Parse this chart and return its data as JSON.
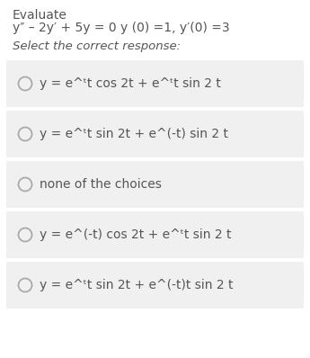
{
  "title_line1": "Evaluate",
  "title_line2": "y″ – 2y′ + 5y = 0 y (0) =1, y′(0) =3",
  "subtitle": "Select the correct response:",
  "options": [
    "y = e^ᵗt cos 2t + e^ᵗt sin 2 t",
    "y = e^ᵗt sin 2t + e^(-t) sin 2 t",
    "none of the choices",
    "y = e^(-t) cos 2t + e^ᵗt sin 2 t",
    "y = e^ᵗt sin 2t + e^(-t)t sin 2 t"
  ],
  "bg_color": "#ffffff",
  "option_bg": "#f0f0f0",
  "text_color": "#555555",
  "radio_color": "#aaaaaa",
  "font_size_title1": 10,
  "font_size_title2": 10,
  "font_size_subtitle": 9.5,
  "font_size_option": 10
}
